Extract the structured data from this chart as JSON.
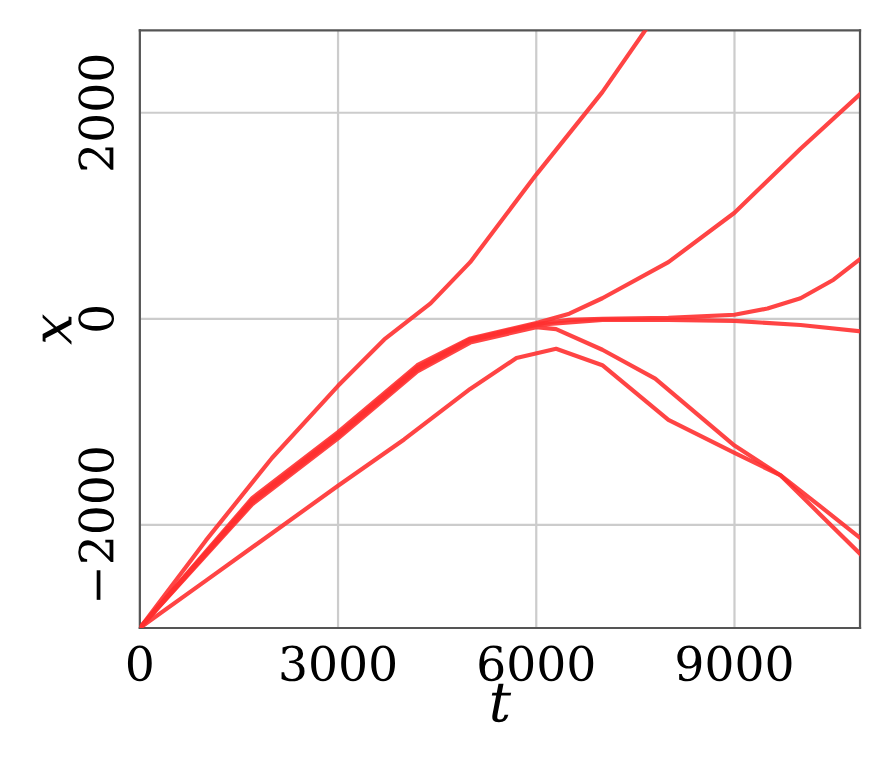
{
  "chart_data": {
    "type": "line",
    "xlabel": "t",
    "ylabel": "x",
    "xlim": [
      0,
      10900
    ],
    "ylim": [
      -3000,
      2800
    ],
    "xticks": [
      0,
      3000,
      6000,
      9000
    ],
    "yticks": [
      {
        "value": -2000,
        "label": "−2000"
      },
      0,
      2000
    ],
    "grid": true,
    "line_style": "solid",
    "marker": "none",
    "series": [
      {
        "color": "#ff3030",
        "x": [
          0,
          1000,
          2000,
          3000,
          3700,
          4400,
          5000,
          6000,
          7000,
          7650
        ],
        "values": [
          -3000,
          -2150,
          -1350,
          -650,
          -200,
          150,
          550,
          1400,
          2200,
          2800
        ]
      },
      {
        "color": "#ff3030",
        "x": [
          0,
          1700,
          3000,
          4200,
          5000,
          6000,
          6500,
          7000,
          8000,
          9000,
          10000,
          10900
        ],
        "values": [
          -3000,
          -1740,
          -1100,
          -450,
          -190,
          -40,
          50,
          200,
          550,
          1030,
          1650,
          2180
        ]
      },
      {
        "color": "#ff3030",
        "x": [
          0,
          1700,
          3000,
          4200,
          5000,
          6000,
          6500,
          7000,
          8000,
          9000,
          9500,
          10000,
          10500,
          10900
        ],
        "values": [
          -3000,
          -1760,
          -1120,
          -470,
          -200,
          -50,
          -10,
          0,
          10,
          40,
          100,
          200,
          380,
          580
        ]
      },
      {
        "color": "#ff3030",
        "x": [
          0,
          1700,
          3000,
          4200,
          5000,
          6000,
          7000,
          8000,
          9000,
          10000,
          10900
        ],
        "values": [
          -3000,
          -1780,
          -1140,
          -490,
          -210,
          -60,
          -10,
          -10,
          -20,
          -60,
          -120
        ]
      },
      {
        "color": "#ff3030",
        "x": [
          0,
          1700,
          3000,
          4200,
          5000,
          6000,
          6300,
          7000,
          7800,
          9000,
          9700,
          10300,
          10900
        ],
        "values": [
          -3000,
          -1800,
          -1160,
          -510,
          -230,
          -80,
          -100,
          -300,
          -580,
          -1230,
          -1520,
          -1900,
          -2280
        ]
      },
      {
        "color": "#ff3030",
        "x": [
          0,
          1000,
          2000,
          3000,
          4000,
          5000,
          5700,
          6300,
          7000,
          8000,
          9000,
          9700,
          10300,
          10900
        ],
        "values": [
          -3000,
          -2540,
          -2080,
          -1620,
          -1170,
          -680,
          -380,
          -290,
          -450,
          -980,
          -1300,
          -1520,
          -1820,
          -2125
        ]
      }
    ]
  }
}
